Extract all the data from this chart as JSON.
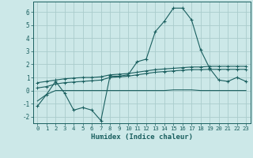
{
  "xlabel": "Humidex (Indice chaleur)",
  "ylabel": "",
  "bg_color": "#cce8e8",
  "grid_color": "#aacccc",
  "line_color": "#1a5f5f",
  "xlim": [
    -0.5,
    23.5
  ],
  "ylim": [
    -2.5,
    6.8
  ],
  "xticks": [
    0,
    1,
    2,
    3,
    4,
    5,
    6,
    7,
    8,
    9,
    10,
    11,
    12,
    13,
    14,
    15,
    16,
    17,
    18,
    19,
    20,
    21,
    22,
    23
  ],
  "yticks": [
    -2,
    -1,
    0,
    1,
    2,
    3,
    4,
    5,
    6
  ],
  "series1_x": [
    0,
    1,
    2,
    3,
    4,
    5,
    6,
    7,
    8,
    9,
    10,
    11,
    12,
    13,
    14,
    15,
    16,
    17,
    18,
    19,
    20,
    21,
    22,
    23
  ],
  "series1_y": [
    -1.2,
    -0.3,
    0.7,
    -0.2,
    -1.5,
    -1.3,
    -1.5,
    -2.3,
    1.1,
    1.1,
    1.2,
    2.2,
    2.4,
    4.5,
    5.3,
    6.3,
    6.3,
    5.4,
    3.1,
    1.7,
    0.8,
    0.7,
    1.0,
    0.7
  ],
  "series2_x": [
    0,
    1,
    2,
    3,
    4,
    5,
    6,
    7,
    8,
    9,
    10,
    11,
    12,
    13,
    14,
    15,
    16,
    17,
    18,
    19,
    20,
    21,
    22,
    23
  ],
  "series2_y": [
    0.6,
    0.7,
    0.8,
    0.9,
    0.95,
    1.0,
    1.0,
    1.05,
    1.2,
    1.25,
    1.3,
    1.4,
    1.5,
    1.6,
    1.65,
    1.7,
    1.75,
    1.8,
    1.8,
    1.85,
    1.85,
    1.85,
    1.85,
    1.85
  ],
  "series3_x": [
    0,
    1,
    2,
    3,
    4,
    5,
    6,
    7,
    8,
    9,
    10,
    11,
    12,
    13,
    14,
    15,
    16,
    17,
    18,
    19,
    20,
    21,
    22,
    23
  ],
  "series3_y": [
    0.2,
    0.3,
    0.5,
    0.6,
    0.65,
    0.7,
    0.75,
    0.8,
    1.0,
    1.05,
    1.1,
    1.2,
    1.3,
    1.4,
    1.45,
    1.5,
    1.55,
    1.6,
    1.6,
    1.62,
    1.62,
    1.62,
    1.62,
    1.62
  ],
  "series4_x": [
    0,
    1,
    2,
    3,
    4,
    5,
    6,
    7,
    8,
    9,
    10,
    11,
    12,
    13,
    14,
    15,
    16,
    17,
    18,
    19,
    20,
    21,
    22,
    23
  ],
  "series4_y": [
    -0.8,
    -0.3,
    0.0,
    0.0,
    0.0,
    0.0,
    0.0,
    0.0,
    0.0,
    0.0,
    0.0,
    0.0,
    0.0,
    0.0,
    0.0,
    0.05,
    0.05,
    0.05,
    0.0,
    0.0,
    0.0,
    0.0,
    0.0,
    0.0
  ]
}
